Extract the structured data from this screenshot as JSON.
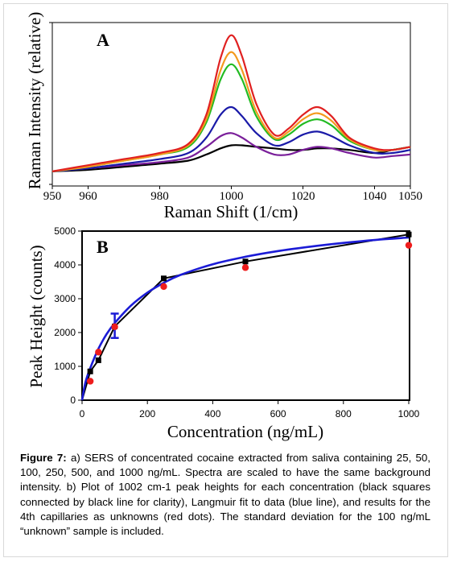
{
  "chart_data": [
    {
      "type": "line",
      "panel": "A",
      "xlabel": "Raman Shift (1/cm)",
      "ylabel": "Raman Intensity (relative)",
      "xlim": [
        950,
        1050
      ],
      "xticks": [
        950,
        960,
        980,
        1000,
        1020,
        1040,
        1050
      ],
      "grid": false,
      "series": [
        {
          "color": "#e02020",
          "x": [
            950,
            960,
            970,
            980,
            988,
            993,
            997,
            1000,
            1003,
            1007,
            1012,
            1016,
            1020,
            1024,
            1028,
            1033,
            1040,
            1045,
            1050
          ],
          "y": [
            0.08,
            0.12,
            0.16,
            0.2,
            0.26,
            0.45,
            0.82,
            0.97,
            0.83,
            0.52,
            0.32,
            0.36,
            0.45,
            0.5,
            0.44,
            0.3,
            0.23,
            0.22,
            0.24
          ]
        },
        {
          "color": "#f39a1e",
          "x": [
            950,
            960,
            970,
            980,
            988,
            993,
            997,
            1000,
            1003,
            1007,
            1012,
            1016,
            1020,
            1024,
            1028,
            1033,
            1040,
            1045,
            1050
          ],
          "y": [
            0.08,
            0.11,
            0.15,
            0.19,
            0.25,
            0.42,
            0.74,
            0.86,
            0.74,
            0.47,
            0.3,
            0.34,
            0.42,
            0.46,
            0.41,
            0.29,
            0.22,
            0.22,
            0.24
          ]
        },
        {
          "color": "#22bb22",
          "x": [
            950,
            960,
            970,
            980,
            988,
            993,
            997,
            1000,
            1003,
            1007,
            1012,
            1016,
            1020,
            1024,
            1028,
            1033,
            1040,
            1045,
            1050
          ],
          "y": [
            0.08,
            0.11,
            0.15,
            0.19,
            0.24,
            0.4,
            0.68,
            0.78,
            0.68,
            0.44,
            0.29,
            0.32,
            0.39,
            0.42,
            0.38,
            0.28,
            0.22,
            0.22,
            0.24
          ]
        },
        {
          "color": "#1a1aa8",
          "x": [
            950,
            960,
            970,
            980,
            988,
            993,
            997,
            1000,
            1003,
            1007,
            1012,
            1016,
            1020,
            1024,
            1028,
            1033,
            1040,
            1045,
            1050
          ],
          "y": [
            0.08,
            0.1,
            0.13,
            0.16,
            0.2,
            0.3,
            0.45,
            0.5,
            0.44,
            0.33,
            0.25,
            0.27,
            0.32,
            0.34,
            0.31,
            0.25,
            0.2,
            0.2,
            0.22
          ]
        },
        {
          "color": "#7a1f9a",
          "x": [
            950,
            960,
            970,
            980,
            988,
            993,
            997,
            1000,
            1003,
            1007,
            1012,
            1016,
            1020,
            1024,
            1028,
            1033,
            1040,
            1045,
            1050
          ],
          "y": [
            0.08,
            0.1,
            0.12,
            0.14,
            0.17,
            0.24,
            0.31,
            0.33,
            0.3,
            0.24,
            0.19,
            0.19,
            0.22,
            0.24,
            0.23,
            0.2,
            0.17,
            0.18,
            0.19
          ]
        },
        {
          "color": "#000000",
          "x": [
            950,
            960,
            970,
            980,
            988,
            993,
            997,
            1000,
            1003,
            1007,
            1012,
            1016,
            1020,
            1024,
            1028,
            1033,
            1040,
            1045,
            1050
          ],
          "y": [
            0.08,
            0.09,
            0.11,
            0.13,
            0.15,
            0.19,
            0.23,
            0.25,
            0.25,
            0.24,
            0.23,
            0.22,
            0.22,
            0.23,
            0.23,
            0.22,
            0.2,
            0.22,
            0.24
          ]
        }
      ]
    },
    {
      "type": "scatter",
      "panel": "B",
      "xlabel": "Concentration (ng/mL)",
      "ylabel": "Peak Height (counts)",
      "xlim": [
        0,
        1000
      ],
      "ylim": [
        0,
        5000
      ],
      "xticks": [
        0,
        200,
        400,
        600,
        800,
        1000
      ],
      "yticks": [
        0,
        1000,
        2000,
        3000,
        4000,
        5000
      ],
      "grid": false,
      "series": [
        {
          "kind": "squares-line",
          "color": "#000000",
          "x": [
            0,
            25,
            50,
            100,
            250,
            500,
            1000
          ],
          "y": [
            0,
            850,
            1180,
            2180,
            3600,
            4100,
            4900
          ]
        },
        {
          "kind": "fit-line",
          "color": "#1b1bd6",
          "x": [
            0,
            10,
            25,
            50,
            75,
            100,
            150,
            200,
            250,
            300,
            400,
            500,
            600,
            700,
            800,
            900,
            1000
          ],
          "y": [
            0,
            520,
            950,
            1520,
            1950,
            2280,
            2800,
            3180,
            3470,
            3700,
            4020,
            4240,
            4410,
            4540,
            4650,
            4740,
            4810
          ]
        },
        {
          "kind": "dots",
          "color": "#ee1c1c",
          "x": [
            25,
            50,
            100,
            250,
            500,
            1000
          ],
          "y": [
            560,
            1420,
            2170,
            3360,
            3920,
            4580
          ]
        }
      ],
      "error_bar": {
        "x": 100,
        "y": 2200,
        "sd": 360,
        "color": "#1b1bd6"
      }
    }
  ],
  "panel_labels": {
    "a": "A",
    "b": "B"
  },
  "caption": {
    "label": "Figure 7:",
    "text": "a) SERS of concentrated cocaine extracted from saliva containing 25, 50, 100, 250, 500, and 1000 ng/mL. Spectra are scaled to have the same background intensity. b) Plot of 1002 cm-1 peak heights for each concentration (black squares connected by black line for clarity), Langmuir fit to data (blue line), and results for the 4th capillaries as unknowns (red dots). The standard deviation for the 100 ng/mL “unknown” sample is included."
  }
}
